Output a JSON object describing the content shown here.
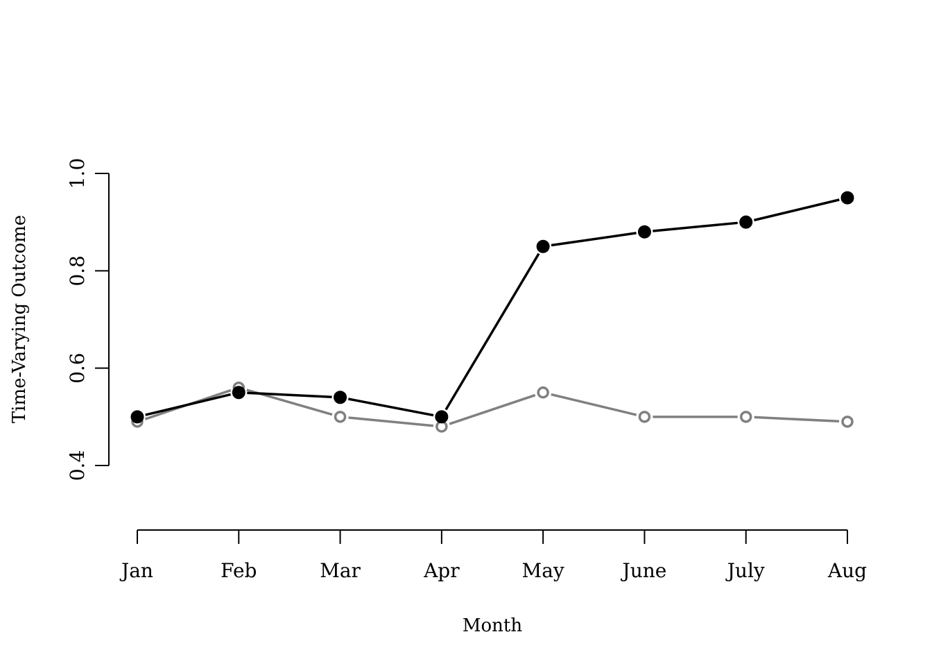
{
  "chart_data": {
    "type": "line",
    "title": "",
    "xlabel": "Month",
    "ylabel": "Time-Varying Outcome",
    "categories": [
      "Jan",
      "Feb",
      "Mar",
      "Apr",
      "May",
      "June",
      "July",
      "Aug"
    ],
    "ylim": [
      0.4,
      1.0
    ],
    "yticks": [
      0.4,
      0.6,
      0.8,
      1.0
    ],
    "ytick_labels": [
      "0.4",
      "0.6",
      "0.8",
      "1.0"
    ],
    "grid": false,
    "legend": "none",
    "series": [
      {
        "values": [
          0.5,
          0.55,
          0.54,
          0.5,
          0.85,
          0.88,
          0.9,
          0.95
        ],
        "color": "#000000",
        "marker": "filled-circle"
      },
      {
        "values": [
          0.49,
          0.56,
          0.5,
          0.48,
          0.55,
          0.5,
          0.5,
          0.49
        ],
        "color": "#808080",
        "marker": "open-circle"
      }
    ]
  }
}
